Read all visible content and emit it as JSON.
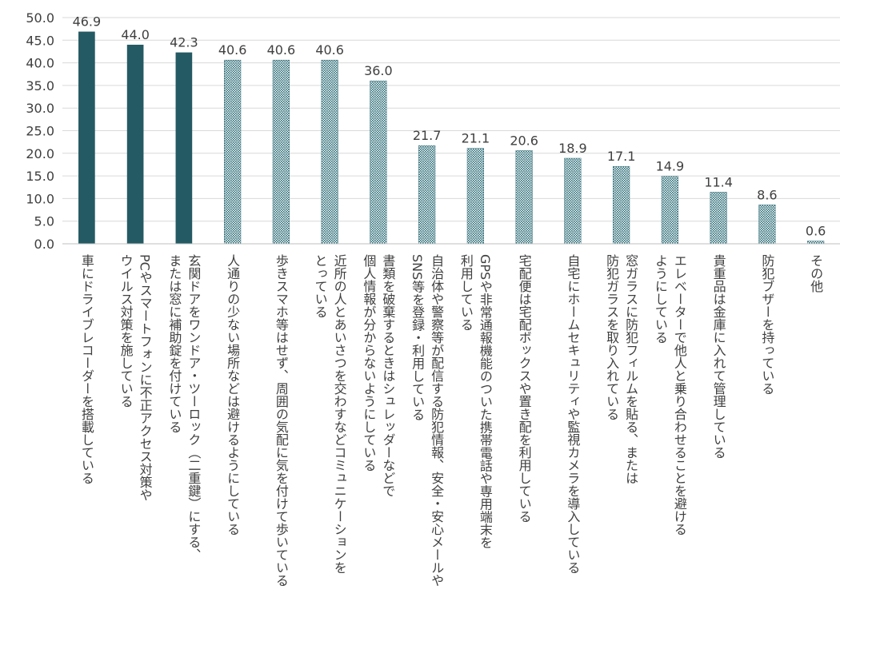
{
  "chart_data": {
    "type": "bar",
    "ylim": [
      0,
      50
    ],
    "ytick_step": 5,
    "ytick_labels": [
      "0.0",
      "5.0",
      "10.0",
      "15.0",
      "20.0",
      "25.0",
      "30.0",
      "35.0",
      "40.0",
      "45.0",
      "50.0"
    ],
    "grid": true,
    "colors": {
      "highlight": "#245a63",
      "pattern": "#2f6f79",
      "pattern_bg": "#ffffff",
      "grid": "#d9d9d9",
      "axis": "#bfbfbf",
      "text": "#404040"
    },
    "categories": [
      [
        "車にドライブレコーダーを搭載している"
      ],
      [
        "PCやスマートフォンに不正アクセス対策や",
        "ウイルス対策を施している"
      ],
      [
        "玄関ドアをワンドア・ツーロック（二重鍵）にする、",
        "または窓に補助錠を付けている"
      ],
      [
        "人通りの少ない場所などは避けるようにしている"
      ],
      [
        "歩きスマホ等はせず、周囲の気配に気を付けて歩いている"
      ],
      [
        "近所の人とあいさつを交わすなどコミュニケーションを",
        "とっている"
      ],
      [
        "書類を破棄するときはシュレッダーなどで",
        "個人情報が分からないようにしている"
      ],
      [
        "自治体や警察等が配信する防犯情報、安全・安心メールや",
        "SNS等を登録・利用している"
      ],
      [
        "GPSや非常通報機能のついた携帯電話や専用端末を",
        "利用している"
      ],
      [
        "宅配便は宅配ボックスや置き配を利用している"
      ],
      [
        "自宅にホームセキュリティや監視カメラを導入している"
      ],
      [
        "窓ガラスに防犯フィルムを貼る、または",
        "防犯ガラスを取り入れている"
      ],
      [
        "エレベーターで他人と乗り合わせることを避ける",
        "ようにしている"
      ],
      [
        "貴重品は金庫に入れて管理している"
      ],
      [
        "防犯ブザーを持っている"
      ],
      [
        "その他"
      ]
    ],
    "values": [
      46.9,
      44.0,
      42.3,
      40.6,
      40.6,
      40.6,
      36.0,
      21.7,
      21.1,
      20.6,
      18.9,
      17.1,
      14.9,
      11.4,
      8.6,
      0.6
    ],
    "value_labels": [
      "46.9",
      "44.0",
      "42.3",
      "40.6",
      "40.6",
      "40.6",
      "36.0",
      "21.7",
      "21.1",
      "20.6",
      "18.9",
      "17.1",
      "14.9",
      "11.4",
      "8.6",
      "0.6"
    ],
    "highlighted_count": 3
  }
}
